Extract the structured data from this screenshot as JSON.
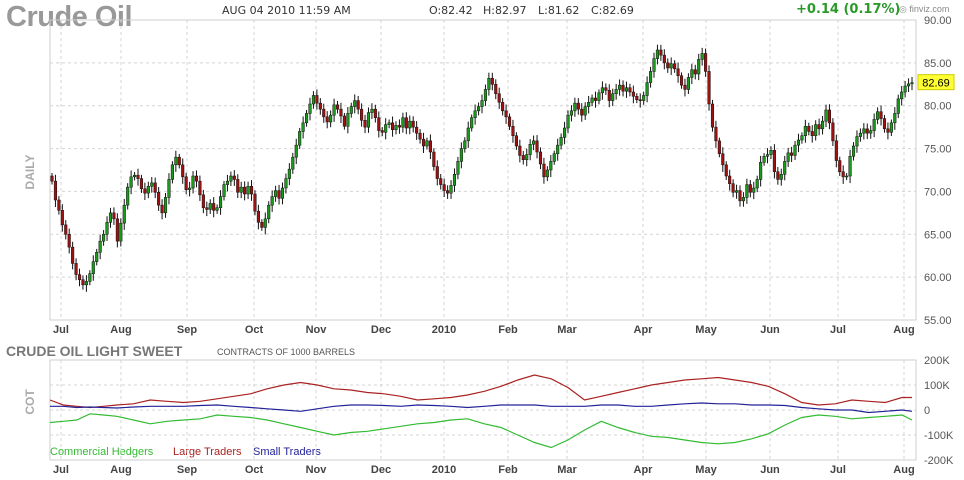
{
  "header": {
    "title": "Crude Oil",
    "datetime": "AUG 04 2010 11:59 AM",
    "open": "O:82.42",
    "high": "H:82.97",
    "low": "L:81.62",
    "close": "C:82.69",
    "change": "+0.14 (0.17%)",
    "brand": "finviz.com",
    "colors": {
      "up": "#2a9a2a",
      "title": "#999999"
    }
  },
  "chart_data": [
    {
      "type": "candlestick",
      "side_label": "DAILY",
      "ylim": [
        55,
        90
      ],
      "y_ticks": [
        "90.00",
        "85.00",
        "80.00",
        "75.00",
        "70.00",
        "65.00",
        "60.00",
        "55.00"
      ],
      "x_tick_labels": [
        "Jul",
        "Aug",
        "Sep",
        "Oct",
        "Nov",
        "Dec",
        "2010",
        "Feb",
        "Mar",
        "Apr",
        "May",
        "Jun",
        "Jul",
        "Aug"
      ],
      "current_price_label": "82.69",
      "grid": true,
      "colors": {
        "up": "#1a9a1a",
        "down": "#a01010",
        "marker": "#ffff33"
      },
      "close": [
        71.2,
        69.0,
        67.8,
        66.1,
        65.0,
        63.5,
        61.6,
        60.3,
        59.7,
        59.1,
        59.5,
        60.4,
        61.8,
        62.9,
        64.2,
        65.0,
        66.4,
        67.5,
        66.8,
        64.2,
        66.3,
        68.4,
        70.5,
        71.7,
        71.9,
        71.5,
        70.3,
        69.8,
        70.6,
        71.0,
        69.9,
        68.4,
        67.5,
        69.3,
        71.4,
        73.1,
        74.0,
        73.1,
        71.7,
        70.2,
        70.4,
        71.8,
        71.2,
        69.6,
        68.1,
        67.9,
        68.6,
        67.8,
        68.1,
        69.4,
        70.8,
        71.2,
        71.8,
        71.4,
        69.9,
        70.5,
        69.7,
        70.6,
        69.7,
        67.7,
        66.4,
        65.8,
        66.8,
        68.4,
        69.4,
        70.1,
        69.2,
        70.4,
        71.5,
        72.6,
        74.0,
        75.4,
        77.0,
        78.0,
        79.1,
        80.2,
        81.2,
        80.3,
        79.6,
        78.7,
        78.1,
        78.9,
        80.1,
        79.6,
        78.8,
        77.6,
        79.1,
        79.9,
        80.6,
        79.6,
        78.3,
        77.5,
        79.2,
        79.6,
        78.6,
        77.1,
        76.9,
        77.8,
        78.0,
        77.2,
        77.7,
        77.5,
        78.6,
        77.4,
        78.2,
        77.5,
        76.8,
        76.1,
        75.3,
        75.9,
        74.6,
        72.9,
        71.5,
        70.8,
        70.1,
        69.8,
        70.7,
        72.0,
        73.5,
        75.0,
        75.9,
        77.4,
        78.6,
        79.4,
        79.9,
        80.6,
        81.9,
        83.2,
        82.5,
        81.4,
        80.4,
        79.4,
        78.7,
        77.6,
        76.5,
        75.3,
        74.2,
        73.7,
        74.3,
        75.5,
        75.9,
        74.6,
        73.2,
        71.7,
        72.5,
        73.5,
        74.4,
        75.4,
        76.3,
        77.4,
        78.9,
        79.4,
        80.3,
        79.6,
        78.9,
        79.9,
        80.4,
        80.9,
        80.6,
        81.5,
        82.1,
        81.8,
        80.6,
        81.4,
        81.9,
        82.4,
        81.7,
        82.1,
        81.6,
        81.1,
        80.7,
        80.6,
        81.2,
        82.7,
        84.0,
        85.5,
        86.5,
        85.9,
        85.0,
        84.4,
        84.9,
        84.3,
        83.5,
        82.4,
        81.9,
        83.3,
        84.2,
        83.7,
        85.4,
        86.1,
        84.0,
        80.2,
        77.5,
        75.9,
        74.4,
        73.1,
        71.8,
        70.9,
        69.9,
        70.1,
        68.9,
        69.3,
        70.8,
        69.9,
        70.4,
        71.4,
        73.4,
        74.1,
        74.3,
        74.8,
        72.3,
        71.4,
        72.0,
        73.5,
        74.5,
        74.2,
        75.4,
        76.0,
        76.5,
        77.6,
        77.0,
        76.5,
        77.8,
        77.3,
        78.2,
        79.5,
        78.0,
        75.9,
        73.6,
        72.3,
        71.7,
        71.8,
        74.1,
        75.3,
        76.4,
        76.8,
        77.3,
        76.8,
        77.1,
        78.4,
        79.3,
        78.5,
        77.3,
        76.9,
        78.0,
        79.1,
        80.8,
        81.6,
        82.3,
        82.55,
        82.69
      ]
    },
    {
      "type": "line",
      "title": "CRUDE OIL LIGHT SWEET",
      "caption": "CONTRACTS OF 1000 BARRELS",
      "side_label": "COT",
      "ylim": [
        -200000,
        200000
      ],
      "y_ticks": [
        "200K",
        "100K",
        "0",
        "-100K",
        "-200K"
      ],
      "x_tick_labels": [
        "Jul",
        "Aug",
        "Sep",
        "Oct",
        "Nov",
        "Dec",
        "2010",
        "Feb",
        "Mar",
        "Apr",
        "May",
        "Jun",
        "Jul",
        "Aug"
      ],
      "x": [
        0,
        4,
        8,
        12,
        16,
        20,
        25,
        30,
        35,
        40,
        45,
        50,
        55,
        60,
        65,
        70,
        75,
        80,
        85,
        90,
        95,
        100,
        105,
        110,
        115,
        120,
        125,
        130,
        135,
        140,
        145,
        150,
        155,
        160,
        165,
        170,
        175,
        180,
        185,
        190,
        195,
        200,
        205,
        210,
        215,
        220,
        225,
        230,
        235,
        240,
        245,
        250,
        255,
        258
      ],
      "series": [
        {
          "name": "Commercial Hedgers",
          "color": "#33bb33",
          "values": [
            -50000,
            -45000,
            -40000,
            -15000,
            -20000,
            -25000,
            -40000,
            -55000,
            -45000,
            -40000,
            -35000,
            -20000,
            -25000,
            -30000,
            -40000,
            -55000,
            -70000,
            -85000,
            -100000,
            -90000,
            -85000,
            -75000,
            -65000,
            -55000,
            -50000,
            -40000,
            -35000,
            -55000,
            -70000,
            -100000,
            -130000,
            -150000,
            -120000,
            -80000,
            -45000,
            -70000,
            -90000,
            -105000,
            -110000,
            -120000,
            -130000,
            -135000,
            -130000,
            -115000,
            -95000,
            -60000,
            -30000,
            -20000,
            -25000,
            -35000,
            -30000,
            -25000,
            -20000,
            -40000
          ]
        },
        {
          "name": "Large Traders",
          "color": "#aa2222",
          "values": [
            40000,
            20000,
            15000,
            10000,
            15000,
            20000,
            25000,
            40000,
            35000,
            30000,
            35000,
            45000,
            55000,
            65000,
            85000,
            100000,
            110000,
            100000,
            85000,
            80000,
            70000,
            65000,
            55000,
            40000,
            45000,
            50000,
            60000,
            75000,
            95000,
            120000,
            140000,
            125000,
            90000,
            40000,
            55000,
            70000,
            85000,
            100000,
            110000,
            120000,
            125000,
            130000,
            120000,
            110000,
            95000,
            65000,
            30000,
            20000,
            25000,
            40000,
            35000,
            30000,
            50000,
            50000
          ]
        },
        {
          "name": "Small Traders",
          "color": "#222299",
          "values": [
            15000,
            15000,
            10000,
            12000,
            10000,
            8000,
            12000,
            15000,
            15000,
            15000,
            18000,
            20000,
            15000,
            10000,
            5000,
            0,
            -5000,
            5000,
            15000,
            20000,
            20000,
            18000,
            15000,
            20000,
            18000,
            15000,
            10000,
            15000,
            20000,
            20000,
            20000,
            15000,
            15000,
            15000,
            20000,
            20000,
            15000,
            15000,
            20000,
            25000,
            28000,
            25000,
            25000,
            20000,
            20000,
            18000,
            10000,
            5000,
            0,
            0,
            -10000,
            -5000,
            0,
            -5000
          ]
        }
      ],
      "legend": [
        "Commercial Hedgers",
        "Large Traders",
        "Small Traders"
      ],
      "legend_placement": "bottom-left"
    }
  ]
}
